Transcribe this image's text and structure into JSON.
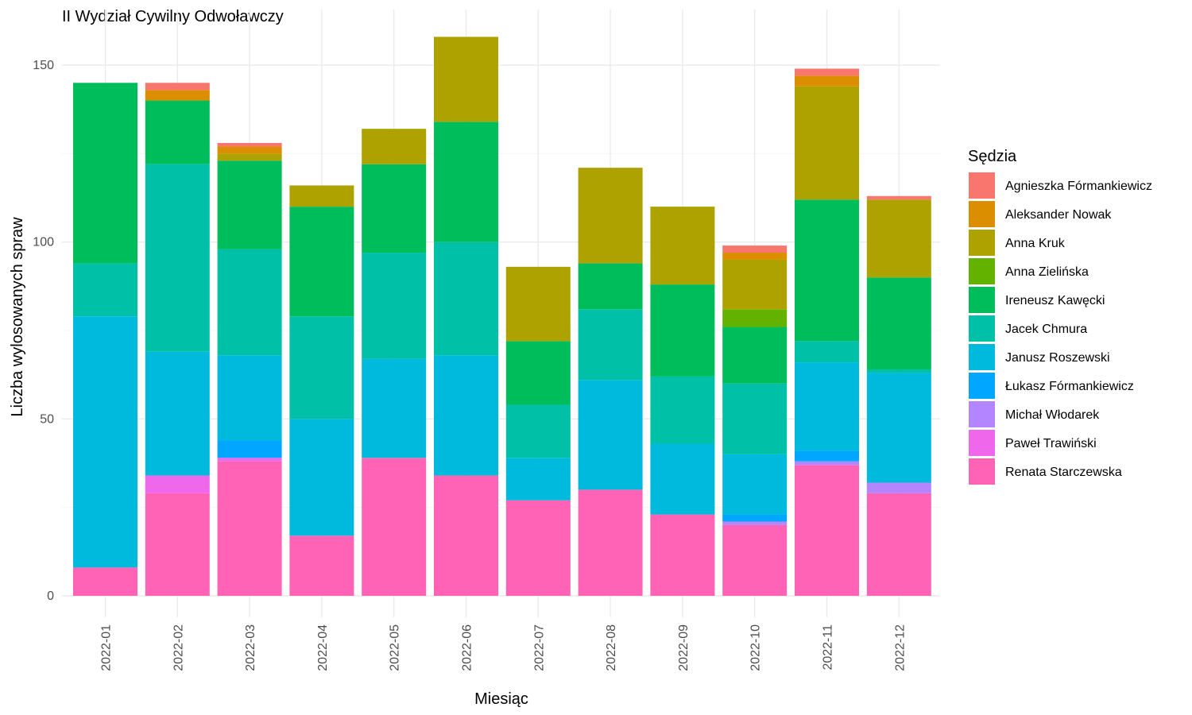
{
  "chart_data": {
    "type": "bar",
    "stacked": true,
    "title": "II Wydział Cywilny Odwoławczy",
    "xlabel": "Miesiąc",
    "ylabel": "Liczba wylosowanych spraw",
    "ylim": [
      0,
      160
    ],
    "yticks": [
      0,
      50,
      100,
      150
    ],
    "grid": true,
    "legend": {
      "title": "Sędzia",
      "placement": "right"
    },
    "categories": [
      "2022-01",
      "2022-02",
      "2022-03",
      "2022-04",
      "2022-05",
      "2022-06",
      "2022-07",
      "2022-08",
      "2022-09",
      "2022-10",
      "2022-11",
      "2022-12"
    ],
    "series": [
      {
        "name": "Agnieszka Fórmankiewicz",
        "color": "#F8766D",
        "values": [
          0,
          2,
          1,
          0,
          0,
          0,
          0,
          0,
          0,
          2,
          2,
          1
        ]
      },
      {
        "name": "Aleksander Nowak",
        "color": "#DB8E00",
        "values": [
          0,
          3,
          2,
          0,
          0,
          0,
          0,
          0,
          0,
          2,
          3,
          0
        ]
      },
      {
        "name": "Anna Kruk",
        "color": "#AEA200",
        "values": [
          0,
          0,
          2,
          6,
          10,
          24,
          21,
          27,
          22,
          14,
          32,
          22
        ]
      },
      {
        "name": "Anna Zielińska",
        "color": "#64B200",
        "values": [
          0,
          0,
          0,
          0,
          0,
          0,
          0,
          0,
          0,
          5,
          0,
          0
        ]
      },
      {
        "name": "Ireneusz Kawęcki",
        "color": "#00BD5C",
        "values": [
          51,
          18,
          25,
          31,
          25,
          34,
          18,
          13,
          26,
          16,
          40,
          26
        ]
      },
      {
        "name": "Jacek Chmura",
        "color": "#00C1A7",
        "values": [
          15,
          53,
          30,
          29,
          30,
          32,
          15,
          20,
          19,
          20,
          6,
          1
        ]
      },
      {
        "name": "Janusz Roszewski",
        "color": "#00BADE",
        "values": [
          71,
          35,
          24,
          33,
          28,
          34,
          12,
          31,
          20,
          17,
          25,
          31
        ]
      },
      {
        "name": "Łukasz Fórmankiewicz",
        "color": "#00A6FF",
        "values": [
          0,
          0,
          5,
          0,
          0,
          0,
          0,
          0,
          0,
          2,
          3,
          0
        ]
      },
      {
        "name": "Michał Włodarek",
        "color": "#B385FF",
        "values": [
          0,
          0,
          0,
          0,
          0,
          0,
          0,
          0,
          0,
          1,
          1,
          3
        ]
      },
      {
        "name": "Paweł Trawiński",
        "color": "#EF67EB",
        "values": [
          0,
          5,
          1,
          0,
          0,
          0,
          0,
          0,
          0,
          0,
          0,
          0
        ]
      },
      {
        "name": "Renata Starczewska",
        "color": "#FF63B6",
        "values": [
          8,
          29,
          38,
          17,
          39,
          34,
          27,
          30,
          23,
          20,
          37,
          29
        ]
      }
    ]
  }
}
